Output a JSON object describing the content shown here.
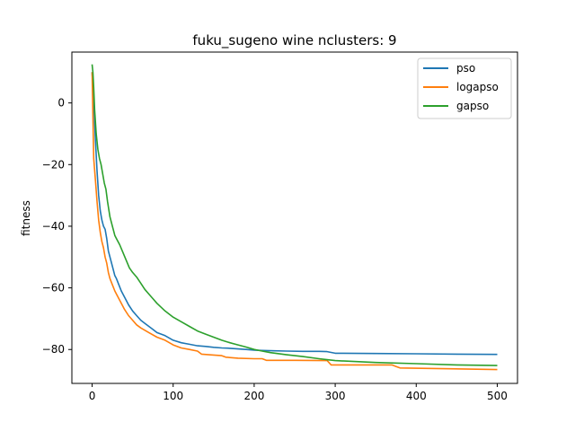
{
  "chart_data": {
    "type": "line",
    "title": "fuku_sugeno wine nclusters: 9",
    "xlabel": "",
    "ylabel": "fitness",
    "xlim": [
      -25,
      525
    ],
    "ylim": [
      -91,
      16.5
    ],
    "xticks": [
      0,
      100,
      200,
      300,
      400,
      500
    ],
    "yticks": [
      0,
      -20,
      -40,
      -60,
      -80
    ],
    "grid": false,
    "legend_position": "top-right",
    "series": [
      {
        "name": "pso",
        "color": "#1f77b4",
        "x": [
          0,
          2,
          4,
          6,
          8,
          10,
          12,
          14,
          16,
          18,
          20,
          22,
          25,
          28,
          30,
          33,
          36,
          40,
          45,
          50,
          55,
          60,
          65,
          70,
          75,
          80,
          90,
          100,
          110,
          120,
          130,
          140,
          150,
          160,
          170,
          180,
          190,
          200,
          210,
          220,
          240,
          260,
          280,
          290,
          300,
          310,
          350,
          400,
          450,
          500
        ],
        "y": [
          10,
          0,
          -12,
          -22,
          -30,
          -35,
          -38,
          -40,
          -41,
          -44,
          -48,
          -50,
          -53,
          -56,
          -57,
          -59,
          -61,
          -63,
          -65.5,
          -67.5,
          -69,
          -70.5,
          -71.5,
          -72.5,
          -73.5,
          -74.5,
          -75.5,
          -77,
          -77.8,
          -78.3,
          -78.8,
          -79,
          -79.3,
          -79.5,
          -79.6,
          -79.8,
          -80,
          -80.2,
          -80.3,
          -80.4,
          -80.5,
          -80.6,
          -80.6,
          -80.7,
          -81.2,
          -81.2,
          -81.3,
          -81.4,
          -81.5,
          -81.6
        ]
      },
      {
        "name": "logapso",
        "color": "#ff7f0e",
        "x": [
          0,
          2,
          4,
          6,
          8,
          10,
          12,
          14,
          16,
          18,
          20,
          22,
          25,
          28,
          30,
          33,
          36,
          40,
          45,
          50,
          55,
          60,
          70,
          80,
          90,
          100,
          110,
          120,
          130,
          135,
          150,
          160,
          165,
          180,
          200,
          210,
          215,
          250,
          290,
          295,
          330,
          370,
          375,
          380,
          500
        ],
        "y": [
          10,
          -18,
          -25,
          -32,
          -38,
          -42,
          -45,
          -47,
          -50,
          -52,
          -55,
          -57,
          -59,
          -61,
          -62,
          -63.5,
          -65,
          -67,
          -69,
          -70.5,
          -72,
          -73,
          -74.5,
          -76,
          -77,
          -78.5,
          -79.5,
          -80,
          -80.5,
          -81.5,
          -81.8,
          -82,
          -82.5,
          -82.8,
          -83,
          -83,
          -83.5,
          -83.5,
          -83.6,
          -85,
          -85,
          -85,
          -85.5,
          -86,
          -86.5
        ]
      },
      {
        "name": "gapso",
        "color": "#2ca02c",
        "x": [
          0,
          1,
          2,
          3,
          5,
          7,
          9,
          11,
          13,
          15,
          17,
          19,
          22,
          25,
          28,
          30,
          34,
          38,
          42,
          46,
          50,
          55,
          60,
          65,
          70,
          75,
          80,
          90,
          100,
          110,
          120,
          130,
          140,
          150,
          160,
          170,
          180,
          190,
          200,
          210,
          220,
          240,
          260,
          280,
          290,
          300,
          350,
          400,
          450,
          500
        ],
        "y": [
          12.5,
          10,
          5,
          -2,
          -10,
          -15,
          -18,
          -20,
          -23,
          -26,
          -28,
          -32,
          -37,
          -40,
          -43,
          -44,
          -46,
          -48.5,
          -51,
          -53.5,
          -55,
          -56.5,
          -58.5,
          -60.5,
          -62,
          -63.5,
          -65,
          -67.5,
          -69.5,
          -71,
          -72.5,
          -74,
          -75,
          -76,
          -77,
          -77.8,
          -78.5,
          -79.2,
          -80,
          -80.5,
          -81,
          -81.7,
          -82.3,
          -83,
          -83.3,
          -83.6,
          -84.2,
          -84.6,
          -85,
          -85.2
        ]
      }
    ]
  }
}
